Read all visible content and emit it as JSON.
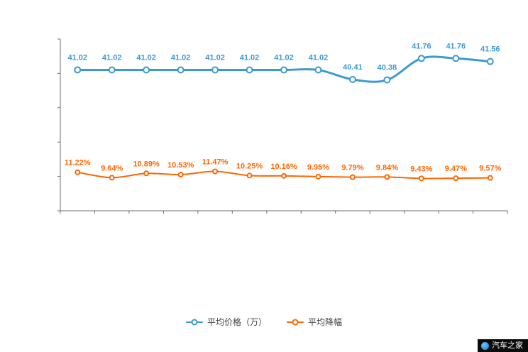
{
  "chart_data": {
    "type": "line",
    "title": "",
    "xlabel": "",
    "ylabel": "",
    "categories": [
      "",
      "",
      "",
      "",
      "",
      "",
      "",
      "",
      "",
      "",
      "",
      "",
      ""
    ],
    "grid": false,
    "smooth": true,
    "legend_position": "bottom",
    "axis_color": "#6e6e6e",
    "ylim_left": [
      32,
      43
    ],
    "ylim_right": [
      0,
      50
    ],
    "series": [
      {
        "name": "平均价格（万）",
        "color": "#3d9ad1",
        "axis": "left",
        "line_width": 3,
        "marker_radius": 4,
        "label_offset": 14,
        "values": [
          41.02,
          41.02,
          41.02,
          41.02,
          41.02,
          41.02,
          41.02,
          41.02,
          40.41,
          40.38,
          41.76,
          41.76,
          41.56
        ],
        "labels": [
          "41.02",
          "41.02",
          "41.02",
          "41.02",
          "41.02",
          "41.02",
          "41.02",
          "41.02",
          "40.41",
          "40.38",
          "41.76",
          "41.76",
          "41.56"
        ]
      },
      {
        "name": "平均降幅",
        "color": "#ff6600",
        "axis": "right",
        "line_width": 2,
        "marker_radius": 3,
        "label_offset": 10,
        "values": [
          11.22,
          9.64,
          10.89,
          10.53,
          11.47,
          10.25,
          10.16,
          9.95,
          9.79,
          9.84,
          9.43,
          9.47,
          9.57
        ],
        "labels": [
          "11.22%",
          "9.64%",
          "10.89%",
          "10.53%",
          "11.47%",
          "10.25%",
          "10.16%",
          "9.95%",
          "9.79%",
          "9.84%",
          "9.43%",
          "9.47%",
          "9.57%"
        ]
      }
    ]
  },
  "legend": {
    "items": [
      {
        "label": "平均价格（万）"
      },
      {
        "label": "平均降幅"
      }
    ]
  },
  "watermark": {
    "text": "汽车之家"
  }
}
